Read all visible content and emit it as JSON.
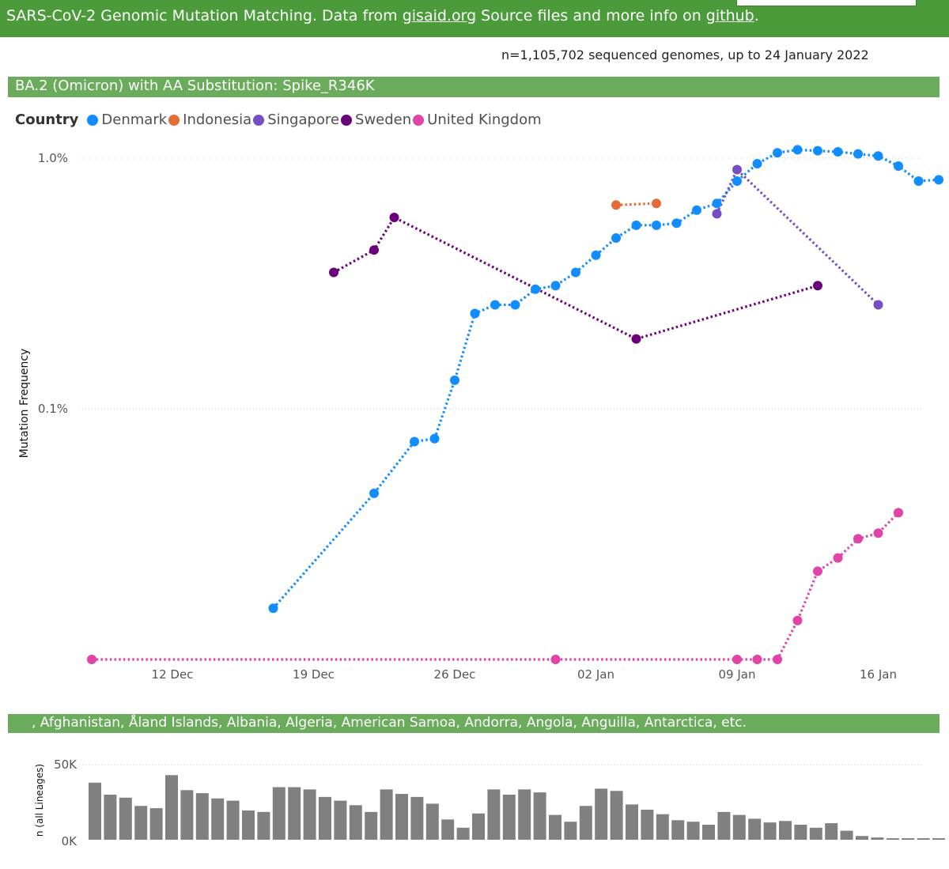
{
  "banner": {
    "prefix": "SARS-CoV-2 Genomic Mutation Matching. Data from ",
    "link1": "gisaid.org",
    "middle": " Source files and more info on ",
    "link2": "github",
    "suffix": "."
  },
  "genome_count": "n=1,105,702 sequenced genomes, up to 24 January 2022",
  "main_title": "BA.2 (Omicron) with AA Substitution: Spike_R346K",
  "lower_title": ", Afghanistan, Åland Islands, Albania, Algeria, American Samoa, Andorra, Angola, Anguilla, Antarctica, etc.",
  "legend": {
    "title": "Country",
    "items": [
      {
        "name": "Denmark",
        "color": "#118dff"
      },
      {
        "name": "Indonesia",
        "color": "#e66c37"
      },
      {
        "name": "Singapore",
        "color": "#744ec2"
      },
      {
        "name": "Sweden",
        "color": "#6b007b"
      },
      {
        "name": "United Kingdom",
        "color": "#e044a7"
      }
    ]
  },
  "chart_data": [
    {
      "type": "line",
      "ylabel": "Mutation Frequency",
      "yscale": "log",
      "y_tick_labels": [
        "1.0%",
        "0.1%"
      ],
      "x_tick_labels": [
        "12 Dec",
        "19 Dec",
        "26 Dec",
        "02 Jan",
        "09 Jan",
        "16 Jan"
      ],
      "grid": true,
      "legend": "top-left",
      "series": [
        {
          "name": "Denmark",
          "color": "#118dff",
          "points": [
            [
              "2021-12-17",
              0.016
            ],
            [
              "2021-12-22",
              0.046
            ],
            [
              "2021-12-24",
              0.074
            ],
            [
              "2021-12-25",
              0.076
            ],
            [
              "2021-12-26",
              0.13
            ],
            [
              "2021-12-27",
              0.24
            ],
            [
              "2021-12-28",
              0.26
            ],
            [
              "2021-12-29",
              0.26
            ],
            [
              "2021-12-30",
              0.3
            ],
            [
              "2021-12-31",
              0.31
            ],
            [
              "2022-01-01",
              0.35
            ],
            [
              "2022-01-02",
              0.41
            ],
            [
              "2022-01-03",
              0.48
            ],
            [
              "2022-01-04",
              0.54
            ],
            [
              "2022-01-05",
              0.54
            ],
            [
              "2022-01-06",
              0.55
            ],
            [
              "2022-01-07",
              0.62
            ],
            [
              "2022-01-08",
              0.66
            ],
            [
              "2022-01-09",
              0.81
            ],
            [
              "2022-01-10",
              0.95
            ],
            [
              "2022-01-11",
              1.05
            ],
            [
              "2022-01-12",
              1.08
            ],
            [
              "2022-01-13",
              1.07
            ],
            [
              "2022-01-14",
              1.06
            ],
            [
              "2022-01-15",
              1.04
            ],
            [
              "2022-01-16",
              1.02
            ],
            [
              "2022-01-17",
              0.93
            ],
            [
              "2022-01-18",
              0.81
            ],
            [
              "2022-01-19",
              0.82
            ]
          ]
        },
        {
          "name": "Indonesia",
          "color": "#e66c37",
          "points": [
            [
              "2022-01-03",
              0.65
            ],
            [
              "2022-01-05",
              0.66
            ]
          ]
        },
        {
          "name": "Singapore",
          "color": "#744ec2",
          "points": [
            [
              "2022-01-08",
              0.6
            ],
            [
              "2022-01-09",
              0.9
            ],
            [
              "2022-01-16",
              0.26
            ]
          ]
        },
        {
          "name": "Sweden",
          "color": "#6b007b",
          "points": [
            [
              "2021-12-20",
              0.35
            ],
            [
              "2021-12-22",
              0.43
            ],
            [
              "2021-12-23",
              0.58
            ],
            [
              "2022-01-04",
              0.19
            ],
            [
              "2022-01-13",
              0.31
            ]
          ]
        },
        {
          "name": "United Kingdom",
          "color": "#e044a7",
          "points": [
            [
              "2021-12-08",
              0.01
            ],
            [
              "2021-12-31",
              0.01
            ],
            [
              "2022-01-09",
              0.01
            ],
            [
              "2022-01-10",
              0.01
            ],
            [
              "2022-01-11",
              0.01
            ],
            [
              "2022-01-12",
              0.0143
            ],
            [
              "2022-01-13",
              0.0225
            ],
            [
              "2022-01-14",
              0.0254
            ],
            [
              "2022-01-15",
              0.0303
            ],
            [
              "2022-01-16",
              0.0319
            ],
            [
              "2022-01-17",
              0.0385
            ]
          ]
        }
      ]
    },
    {
      "type": "bar",
      "ylabel": "n (all Lineages)",
      "y_tick_labels": [
        "50K",
        "0K"
      ],
      "ylim": [
        0,
        50000
      ],
      "grid": true,
      "x_start": "2021-12-08",
      "x_step_days": 1,
      "values": [
        38000,
        30000,
        28000,
        22500,
        21000,
        43000,
        33000,
        31000,
        27500,
        26000,
        19500,
        18500,
        35000,
        35000,
        33500,
        28500,
        26000,
        23000,
        18500,
        33500,
        30500,
        28500,
        24000,
        13500,
        8000,
        17500,
        33500,
        30000,
        33500,
        31500,
        16500,
        12000,
        22500,
        34000,
        32500,
        23500,
        20000,
        17000,
        13000,
        12000,
        10000,
        18500,
        16500,
        14000,
        11500,
        12500,
        10000,
        8000,
        11000,
        6000,
        2500,
        1500,
        1000,
        1000,
        1000,
        1000
      ]
    }
  ]
}
